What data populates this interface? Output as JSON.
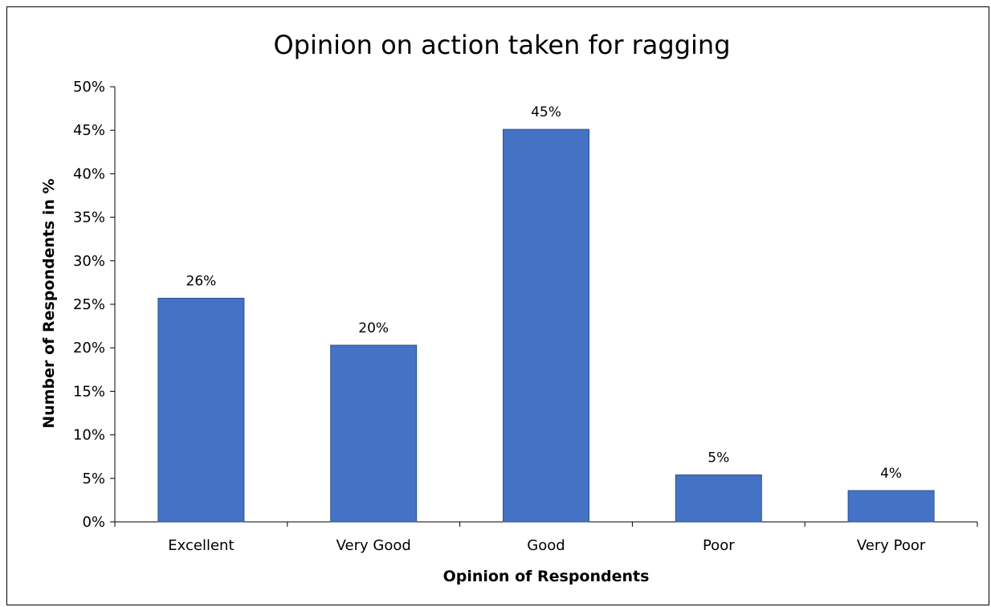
{
  "chart_data": {
    "type": "bar",
    "title": "Opinion on action taken for ragging",
    "xlabel": "Opinion of Respondents",
    "ylabel": "Number of Respondents in %",
    "categories": [
      "Excellent",
      "Very Good",
      "Good",
      "Poor",
      "Very Poor"
    ],
    "values": [
      25.7,
      20.3,
      45.1,
      5.4,
      3.6
    ],
    "data_labels": [
      "26%",
      "20%",
      "45%",
      "5%",
      "4%"
    ],
    "ylim": [
      0,
      50
    ],
    "yticks": [
      0,
      5,
      10,
      15,
      20,
      25,
      30,
      35,
      40,
      45,
      50
    ],
    "ytick_labels": [
      "0%",
      "5%",
      "10%",
      "15%",
      "20%",
      "25%",
      "30%",
      "35%",
      "40%",
      "45%",
      "50%"
    ],
    "grid": false,
    "legend": "none",
    "bar_color": "#4472C4"
  }
}
